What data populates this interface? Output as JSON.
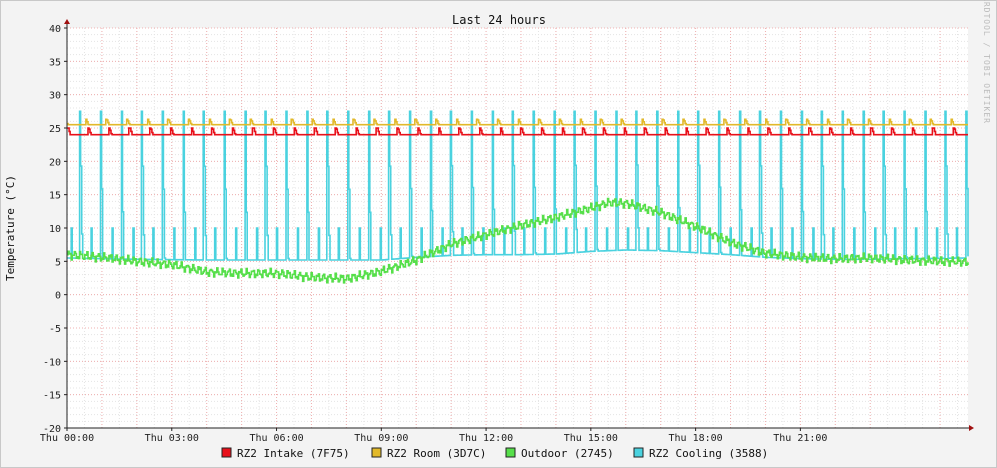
{
  "chart_data": {
    "type": "line",
    "title": "Last 24 hours",
    "ylabel": "Temperature (°C)",
    "xlabel": "",
    "watermark": "RRDTOOL / TOBI OETIKER",
    "ylim": [
      -20,
      40
    ],
    "y_ticks": [
      40,
      35,
      30,
      25,
      20,
      15,
      10,
      5,
      0,
      -5,
      -10,
      -15,
      -20
    ],
    "x_range_hours": [
      0,
      25.8
    ],
    "x_ticks": [
      {
        "hour": 0,
        "label": "Thu 00:00"
      },
      {
        "hour": 3,
        "label": "Thu 03:00"
      },
      {
        "hour": 6,
        "label": "Thu 06:00"
      },
      {
        "hour": 9,
        "label": "Thu 09:00"
      },
      {
        "hour": 12,
        "label": "Thu 12:00"
      },
      {
        "hour": 15,
        "label": "Thu 15:00"
      },
      {
        "hour": 18,
        "label": "Thu 18:00"
      },
      {
        "hour": 21,
        "label": "Thu 21:00"
      }
    ],
    "grid": true,
    "legend_position": "bottom",
    "series": [
      {
        "name": "RZ2 Intake (7F75)",
        "color": "#e8101a",
        "x": [
          0,
          1,
          2,
          3,
          4,
          5,
          6,
          7,
          8,
          9,
          10,
          11,
          12,
          13,
          14,
          15,
          16,
          17,
          18,
          19,
          20,
          21,
          22,
          23,
          24,
          25.8
        ],
        "y": [
          24,
          24,
          24,
          24,
          24,
          24,
          24,
          24,
          24,
          24,
          24,
          24,
          24,
          24,
          24,
          24,
          24,
          24,
          24,
          24,
          24,
          24,
          24,
          24,
          24,
          24
        ],
        "peak_value": 25,
        "peak_spacing_hours": 0.59
      },
      {
        "name": "RZ2 Room (3D7C)",
        "color": "#e2b92a",
        "x": [
          0,
          1,
          2,
          3,
          4,
          5,
          6,
          7,
          8,
          9,
          10,
          11,
          12,
          13,
          14,
          15,
          16,
          17,
          18,
          19,
          20,
          21,
          22,
          23,
          24,
          25.8
        ],
        "y": [
          25.5,
          25.5,
          25.5,
          25.5,
          25.5,
          25.5,
          25.5,
          25.5,
          25.5,
          25.5,
          25.5,
          25.5,
          25.5,
          25.5,
          25.5,
          25.5,
          25.5,
          25.5,
          25.5,
          25.5,
          25.5,
          25.5,
          25.5,
          25.5,
          25.5,
          25.5
        ],
        "peak_value": 26.3,
        "peak_spacing_hours": 0.59
      },
      {
        "name": "Outdoor (2745)",
        "color": "#56df4a",
        "x": [
          0,
          1,
          2,
          3,
          4,
          5,
          6,
          7,
          8,
          9,
          10,
          11,
          12,
          13,
          14,
          15,
          15.5,
          16,
          17,
          18,
          19,
          20,
          21,
          22,
          23,
          24,
          25.8
        ],
        "y": [
          6.0,
          5.6,
          5.0,
          4.5,
          3.4,
          3.2,
          3.2,
          2.6,
          2.4,
          3.5,
          5.2,
          7.6,
          9.0,
          10.4,
          11.6,
          13.0,
          13.8,
          13.7,
          12.3,
          10.2,
          7.8,
          6.2,
          5.6,
          5.4,
          5.5,
          5.2,
          4.9
        ]
      },
      {
        "name": "RZ2 Cooling (3588)",
        "color": "#4ad2df",
        "x": [
          0,
          2,
          4,
          6,
          8,
          9,
          10,
          11,
          12,
          13,
          14,
          15,
          16,
          17,
          18,
          19,
          20,
          21,
          22,
          23,
          24,
          25.8
        ],
        "y": [
          5.5,
          5.3,
          5.2,
          5.2,
          5.2,
          5.2,
          5.6,
          5.9,
          6.0,
          6.0,
          6.1,
          6.5,
          6.7,
          6.6,
          6.3,
          6.0,
          5.6,
          5.4,
          5.3,
          5.3,
          5.4,
          5.5
        ],
        "peak_value": 27.5,
        "peak_spacing_hours": 0.59
      }
    ]
  }
}
